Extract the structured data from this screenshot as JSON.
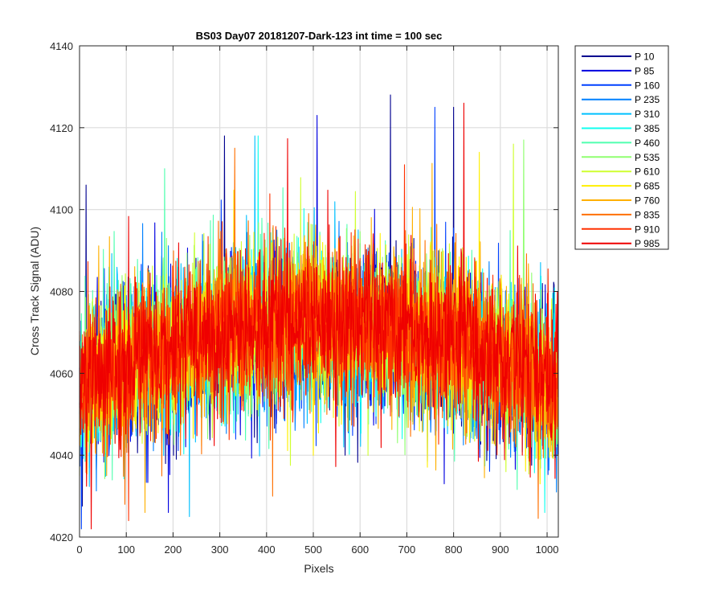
{
  "chart_data": {
    "type": "line",
    "title": "BS03 Day07 20181207-Dark-123 int time = 100 sec",
    "xlabel": "Pixels",
    "ylabel": "Cross Track Signal (ADU)",
    "xlim": [
      0,
      1024
    ],
    "ylim": [
      4020,
      4140
    ],
    "xticks": [
      0,
      100,
      200,
      300,
      400,
      500,
      600,
      700,
      800,
      900,
      1000
    ],
    "yticks": [
      4020,
      4040,
      4060,
      4080,
      4100,
      4120,
      4140
    ],
    "grid": true,
    "legend_position": "outside-top-right",
    "series": [
      {
        "name": "P 10",
        "color": "#00008f",
        "profile": {
          "center": 4070,
          "edge_low": 4055,
          "noise": 9
        },
        "peaks": [
          {
            "x": 14,
            "y": 4106
          },
          {
            "x": 665,
            "y": 4128
          },
          {
            "x": 310,
            "y": 4118
          },
          {
            "x": 800,
            "y": 4125
          }
        ]
      },
      {
        "name": "P 85",
        "color": "#0000e0",
        "profile": {
          "center": 4070,
          "edge_low": 4055,
          "noise": 9
        },
        "peaks": [
          {
            "x": 508,
            "y": 4123
          },
          {
            "x": 780,
            "y": 4033
          },
          {
            "x": 190,
            "y": 4026
          }
        ]
      },
      {
        "name": "P 160",
        "color": "#0040ff",
        "profile": {
          "center": 4071,
          "edge_low": 4056,
          "noise": 9
        },
        "peaks": [
          {
            "x": 760,
            "y": 4125
          },
          {
            "x": 4,
            "y": 4022
          }
        ]
      },
      {
        "name": "P 235",
        "color": "#0080ff",
        "profile": {
          "center": 4071,
          "edge_low": 4056,
          "noise": 9
        },
        "peaks": [
          {
            "x": 1020,
            "y": 4031
          }
        ]
      },
      {
        "name": "P 310",
        "color": "#00c0ff",
        "profile": {
          "center": 4071,
          "edge_low": 4056,
          "noise": 9
        },
        "peaks": [
          {
            "x": 375,
            "y": 4118
          },
          {
            "x": 235,
            "y": 4025
          }
        ]
      },
      {
        "name": "P 385",
        "color": "#10ffef",
        "profile": {
          "center": 4071,
          "edge_low": 4056,
          "noise": 9
        },
        "peaks": [
          {
            "x": 382,
            "y": 4118
          },
          {
            "x": 995,
            "y": 4026
          }
        ]
      },
      {
        "name": "P 460",
        "color": "#50ffaf",
        "profile": {
          "center": 4072,
          "edge_low": 4057,
          "noise": 9
        },
        "peaks": [
          {
            "x": 182,
            "y": 4110
          }
        ]
      },
      {
        "name": "P 535",
        "color": "#90ff70",
        "profile": {
          "center": 4072,
          "edge_low": 4057,
          "noise": 9
        },
        "peaks": [
          {
            "x": 950,
            "y": 4117
          }
        ]
      },
      {
        "name": "P 610",
        "color": "#cfff30",
        "profile": {
          "center": 4072,
          "edge_low": 4057,
          "noise": 9
        },
        "peaks": [
          {
            "x": 928,
            "y": 4116
          }
        ]
      },
      {
        "name": "P 685",
        "color": "#ffef00",
        "profile": {
          "center": 4072,
          "edge_low": 4057,
          "noise": 9
        },
        "peaks": [
          {
            "x": 855,
            "y": 4114
          },
          {
            "x": 985,
            "y": 4033
          }
        ]
      },
      {
        "name": "P 760",
        "color": "#ffb000",
        "profile": {
          "center": 4072,
          "edge_low": 4057,
          "noise": 9
        },
        "peaks": [
          {
            "x": 140,
            "y": 4026
          }
        ]
      },
      {
        "name": "P 835",
        "color": "#ff7000",
        "profile": {
          "center": 4072,
          "edge_low": 4057,
          "noise": 9
        },
        "peaks": [
          {
            "x": 332,
            "y": 4115
          },
          {
            "x": 413,
            "y": 4030
          },
          {
            "x": 97,
            "y": 4028
          }
        ]
      },
      {
        "name": "P 910",
        "color": "#ff3000",
        "profile": {
          "center": 4072,
          "edge_low": 4057,
          "noise": 9
        },
        "peaks": [
          {
            "x": 105,
            "y": 4024
          }
        ]
      },
      {
        "name": "P 985",
        "color": "#ef0000",
        "profile": {
          "center": 4073,
          "edge_low": 4058,
          "noise": 9
        },
        "peaks": [
          {
            "x": 822,
            "y": 4126
          },
          {
            "x": 25,
            "y": 4022
          }
        ]
      }
    ]
  }
}
